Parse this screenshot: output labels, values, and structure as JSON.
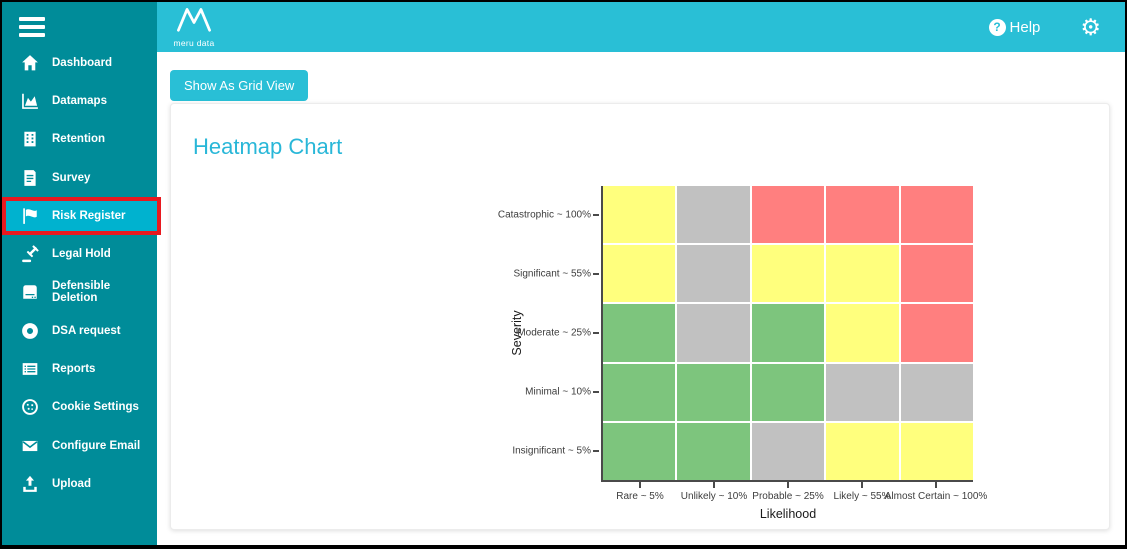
{
  "header": {
    "logo_text": "meru data",
    "help_label": "Help",
    "icons": {
      "help_glyph": "?",
      "gear_glyph": "⚙"
    },
    "colors": {
      "background": "#29bfd6"
    }
  },
  "sidebar": {
    "colors": {
      "background": "#008c99",
      "selected_background": "#00b2cf",
      "highlight_border": "#e8191f"
    },
    "items": [
      {
        "label": "Dashboard",
        "icon": "home-icon",
        "selected": false
      },
      {
        "label": "Datamaps",
        "icon": "datamaps-icon",
        "selected": false
      },
      {
        "label": "Retention",
        "icon": "building-icon",
        "selected": false
      },
      {
        "label": "Survey",
        "icon": "document-icon",
        "selected": false
      },
      {
        "label": "Risk Register",
        "icon": "flag-icon",
        "selected": true
      },
      {
        "label": "Legal Hold",
        "icon": "gavel-icon",
        "selected": false
      },
      {
        "label": "Defensible Deletion",
        "icon": "harddrive-icon",
        "selected": false
      },
      {
        "label": "DSA request",
        "icon": "lifering-icon",
        "selected": false
      },
      {
        "label": "Reports",
        "icon": "report-icon",
        "selected": false
      },
      {
        "label": "Cookie Settings",
        "icon": "cookie-icon",
        "selected": false
      },
      {
        "label": "Configure Email",
        "icon": "email-icon",
        "selected": false
      },
      {
        "label": "Upload",
        "icon": "upload-icon",
        "selected": false
      }
    ]
  },
  "toolbar": {
    "grid_view_button": "Show As Grid View"
  },
  "main": {
    "title": "Heatmap Chart",
    "title_color": "#29b7d8"
  },
  "chart_data": {
    "type": "heatmap",
    "title": "Heatmap Chart",
    "xlabel": "Likelihood",
    "ylabel": "Severity",
    "x_categories": [
      "Rare ~ 5%",
      "Unlikely ~ 10%",
      "Probable ~ 25%",
      "Likely ~ 55%",
      "Almost Certain ~ 100%"
    ],
    "y_categories": [
      "Catastrophic ~ 100%",
      "Significant ~ 55%",
      "Moderate ~ 25%",
      "Minimal ~ 10%",
      "Insignificant ~ 5%"
    ],
    "legend_position": "none",
    "grid": true,
    "cell_colors": {
      "green": "#7dc57d",
      "yellow": "#ffff7d",
      "gray": "#c1c1c1",
      "red": "#ff7f7f"
    },
    "cells": [
      [
        "yellow",
        "gray",
        "red",
        "red",
        "red"
      ],
      [
        "yellow",
        "gray",
        "yellow",
        "yellow",
        "red"
      ],
      [
        "green",
        "gray",
        "green",
        "yellow",
        "red"
      ],
      [
        "green",
        "green",
        "green",
        "gray",
        "gray"
      ],
      [
        "green",
        "green",
        "gray",
        "yellow",
        "yellow"
      ]
    ]
  }
}
